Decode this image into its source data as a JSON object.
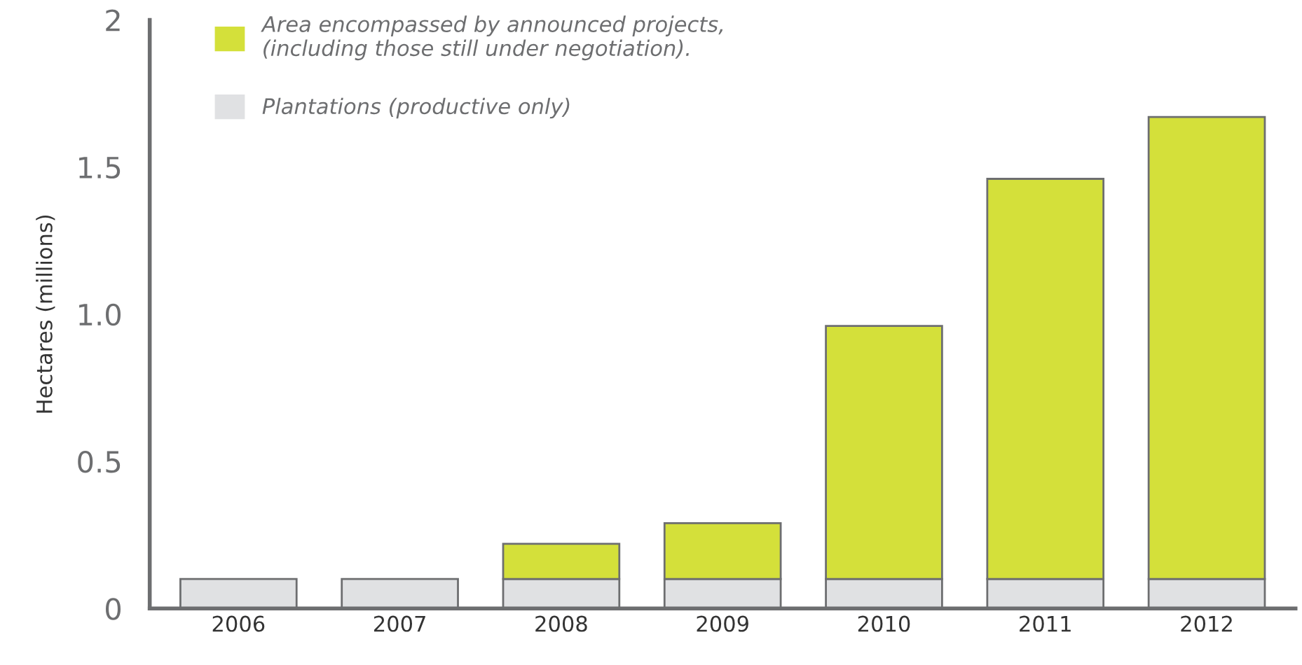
{
  "chart_data": {
    "type": "bar",
    "stacked": true,
    "ylabel": "Hectares (millions)",
    "categories": [
      "2006",
      "2007",
      "2008",
      "2009",
      "2010",
      "2011",
      "2012"
    ],
    "series": [
      {
        "name": "Plantations (productive only)",
        "color": "#e0e1e3",
        "values": [
          0.1,
          0.1,
          0.1,
          0.1,
          0.1,
          0.1,
          0.1
        ]
      },
      {
        "name": "Area encompassed by announced projects,\n(including those still under negotiation).",
        "color": "#d4e03a",
        "values": [
          null,
          null,
          0.12,
          0.19,
          0.86,
          1.36,
          1.57
        ]
      }
    ],
    "ylim": [
      0,
      2
    ],
    "yticks": [
      0,
      0.5,
      {
        "value": 1.0,
        "label": "1.0"
      },
      1.5,
      2
    ],
    "grid": false,
    "legend": "top left"
  }
}
